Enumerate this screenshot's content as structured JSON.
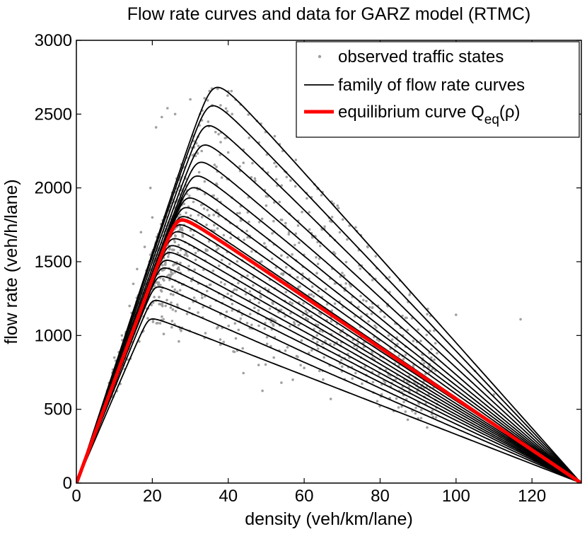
{
  "chart_data": {
    "type": "scatter",
    "title": "Flow rate curves and data for GARZ model (RTMC)",
    "xlabel": "density (veh/km/lane)",
    "ylabel": "flow rate (veh/h/lane)",
    "xlim": [
      0,
      133
    ],
    "ylim": [
      0,
      3000
    ],
    "xticks": [
      "0",
      "20",
      "40",
      "60",
      "80",
      "100",
      "120"
    ],
    "yticks": [
      "0",
      "500",
      "1000",
      "1500",
      "2000",
      "2500",
      "3000"
    ],
    "grid": false,
    "legend_position": "top-right",
    "rho_max": 133,
    "legend": {
      "observed": "observed traffic states",
      "family": "family of flow rate curves",
      "equilibrium_prefix": "equilibrium curve Q",
      "equilibrium_sub": "eq",
      "equilibrium_suffix": "(ρ)"
    },
    "series": [
      {
        "name": "family of flow rate curves",
        "kind": "line",
        "color": "#000000",
        "curves": [
          {
            "rho_peak": 19.0,
            "q_peak": 1140
          },
          {
            "rho_peak": 19.8,
            "q_peak": 1270
          },
          {
            "rho_peak": 20.5,
            "q_peak": 1365
          },
          {
            "rho_peak": 21.3,
            "q_peak": 1440
          },
          {
            "rho_peak": 22.0,
            "q_peak": 1500
          },
          {
            "rho_peak": 22.6,
            "q_peak": 1555
          },
          {
            "rho_peak": 23.3,
            "q_peak": 1610
          },
          {
            "rho_peak": 24.0,
            "q_peak": 1660
          },
          {
            "rho_peak": 24.6,
            "q_peak": 1710
          },
          {
            "rho_peak": 25.3,
            "q_peak": 1760
          },
          {
            "rho_peak": 26.0,
            "q_peak": 1810
          },
          {
            "rho_peak": 26.8,
            "q_peak": 1870
          },
          {
            "rho_peak": 27.6,
            "q_peak": 1935
          },
          {
            "rho_peak": 28.5,
            "q_peak": 2005
          },
          {
            "rho_peak": 29.5,
            "q_peak": 2080
          },
          {
            "rho_peak": 30.5,
            "q_peak": 2165
          },
          {
            "rho_peak": 31.5,
            "q_peak": 2265
          },
          {
            "rho_peak": 32.5,
            "q_peak": 2390
          },
          {
            "rho_peak": 33.5,
            "q_peak": 2530
          },
          {
            "rho_peak": 34.6,
            "q_peak": 2675
          },
          {
            "rho_peak": 35.8,
            "q_peak": 2810
          }
        ]
      },
      {
        "name": "equilibrium curve Q_eq(ρ)",
        "kind": "line",
        "color": "#ff0000",
        "rho_peak": 26.5,
        "q_peak": 1845
      },
      {
        "name": "observed traffic states",
        "kind": "scatter",
        "color": "#a0a0a0",
        "points": [
          [
            117,
            1110
          ],
          [
            100,
            1140
          ],
          [
            90,
            1040
          ],
          [
            67,
            570
          ],
          [
            49,
            625
          ],
          [
            44,
            745
          ],
          [
            23,
            1010
          ],
          [
            27,
            960
          ],
          [
            22.5,
            2480
          ],
          [
            24,
            2540
          ],
          [
            26,
            2500
          ],
          [
            19.5,
            2000
          ],
          [
            21,
            2410
          ],
          [
            48,
            800
          ],
          [
            52,
            850
          ],
          [
            58,
            860
          ],
          [
            62,
            900
          ],
          [
            70,
            790
          ],
          [
            75,
            850
          ],
          [
            80,
            920
          ],
          [
            86,
            1000
          ],
          [
            95,
            880
          ],
          [
            105,
            760
          ],
          [
            110,
            600
          ],
          [
            57,
            700
          ],
          [
            60,
            780
          ],
          [
            54,
            680
          ],
          [
            42,
            980
          ],
          [
            46,
            1050
          ],
          [
            40,
            2240
          ],
          [
            44,
            2170
          ],
          [
            38,
            2310
          ],
          [
            50,
            1880
          ],
          [
            56,
            1700
          ],
          [
            64,
            1520
          ],
          [
            72,
            1350
          ],
          [
            78,
            1190
          ],
          [
            84,
            1080
          ],
          [
            30,
            2600
          ],
          [
            33,
            2250
          ],
          [
            18,
            1600
          ],
          [
            15,
            1350
          ],
          [
            12,
            1000
          ],
          [
            10,
            850
          ],
          [
            14,
            1200
          ],
          [
            16,
            1450
          ],
          [
            20,
            1800
          ],
          [
            17,
            1700
          ]
        ]
      }
    ]
  }
}
